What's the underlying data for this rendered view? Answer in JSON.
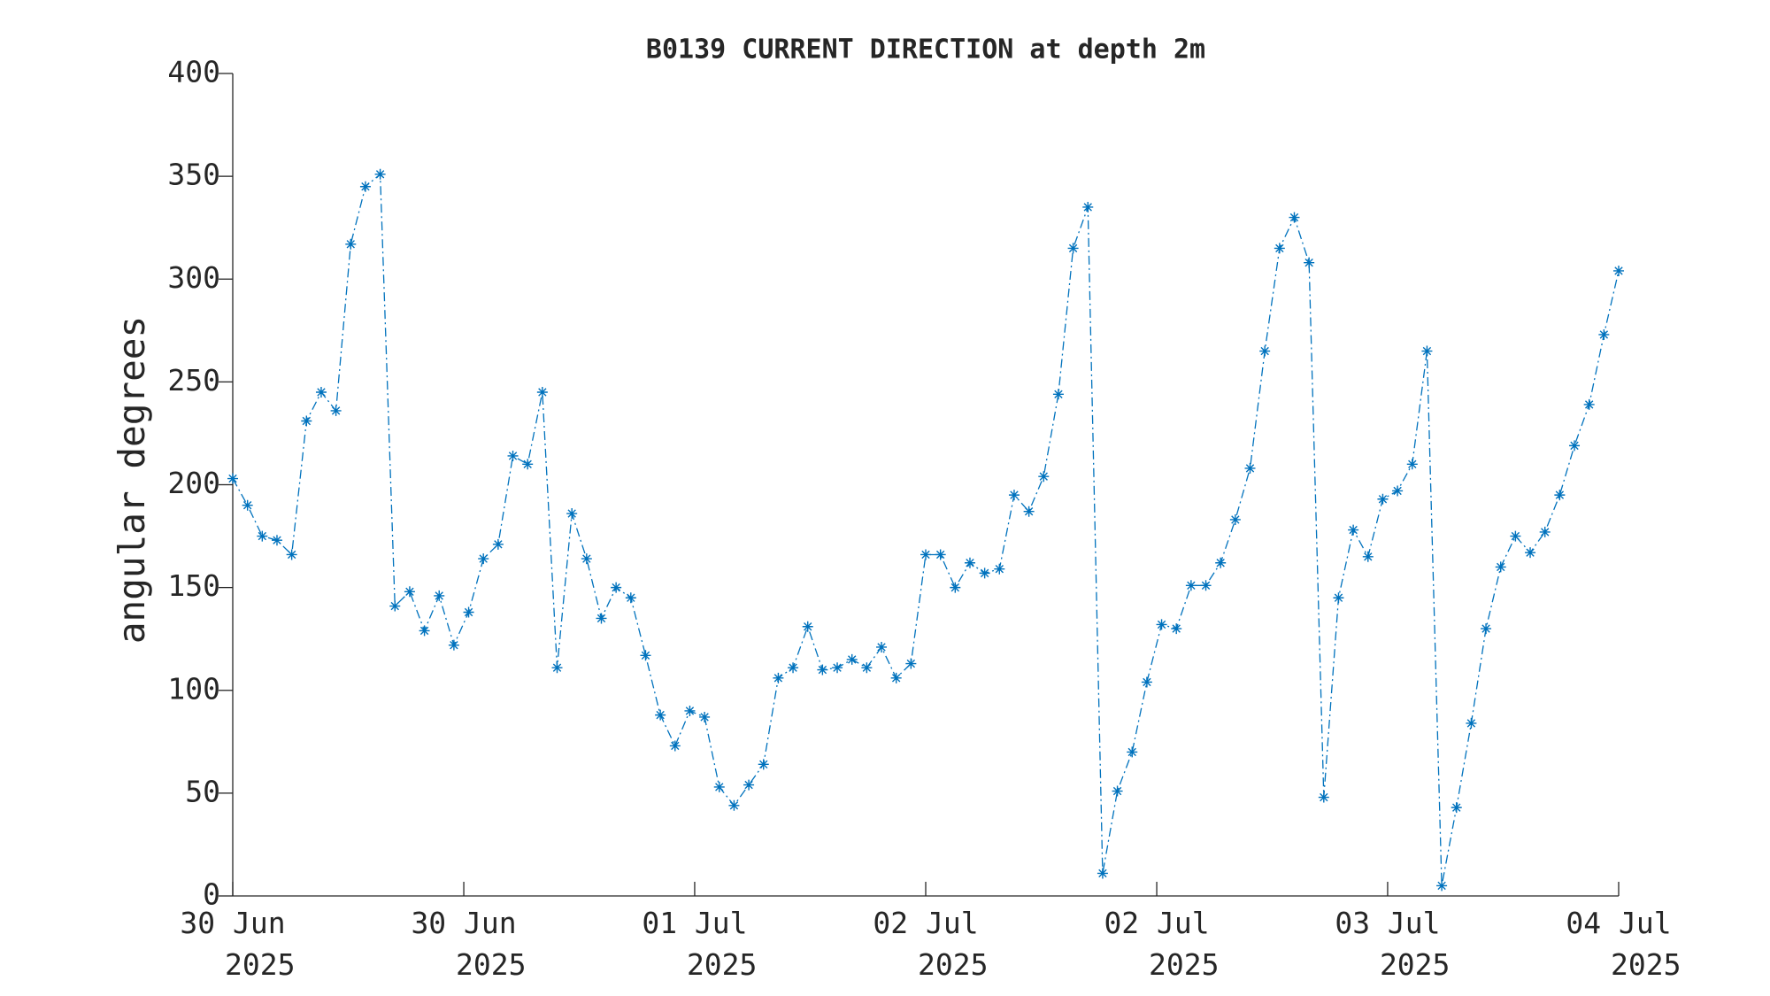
{
  "chart_data": {
    "type": "line",
    "title": "B0139 CURRENT DIRECTION at depth 2m",
    "ylabel": "angular degrees",
    "x": [
      0,
      1,
      2,
      3,
      4,
      5,
      6,
      7,
      8,
      9,
      10,
      11,
      12,
      13,
      14,
      15,
      16,
      17,
      18,
      19,
      20,
      21,
      22,
      23,
      24,
      25,
      26,
      27,
      28,
      29,
      30,
      31,
      32,
      33,
      34,
      35,
      36,
      37,
      38,
      39,
      40,
      41,
      42,
      43,
      44,
      45,
      46,
      47,
      48,
      49,
      50,
      51,
      52,
      53,
      54,
      55,
      56,
      57,
      58,
      59,
      60,
      61,
      62,
      63,
      64,
      65,
      66,
      67,
      68,
      69,
      70,
      71,
      72,
      73,
      74,
      75,
      76,
      77,
      78,
      79,
      80,
      81,
      82,
      83,
      84,
      85,
      86,
      87,
      88,
      89,
      90,
      91,
      92,
      93,
      94
    ],
    "series": [
      {
        "name": "current direction",
        "color": "#0072bd",
        "values": [
          203,
          190,
          175,
          173,
          166,
          231,
          245,
          236,
          317,
          345,
          351,
          141,
          148,
          129,
          146,
          122,
          138,
          164,
          171,
          214,
          210,
          245,
          111,
          186,
          164,
          135,
          150,
          145,
          117,
          88,
          73,
          90,
          87,
          53,
          44,
          54,
          64,
          106,
          111,
          131,
          110,
          111,
          115,
          111,
          121,
          106,
          113,
          166,
          166,
          150,
          162,
          157,
          159,
          195,
          187,
          204,
          244,
          315,
          335,
          11,
          51,
          70,
          104,
          132,
          130,
          151,
          151,
          162,
          183,
          208,
          265,
          315,
          330,
          308,
          48,
          145,
          178,
          165,
          193,
          197,
          210,
          265,
          5,
          43,
          84,
          130,
          160,
          175,
          167,
          177,
          195,
          219,
          239,
          273,
          304
        ]
      }
    ],
    "xlim": [
      0,
      94
    ],
    "xticks": [
      {
        "value": 0,
        "label": "30 Jun\n2025"
      },
      {
        "value": 15.67,
        "label": "30 Jun\n2025"
      },
      {
        "value": 31.33,
        "label": "01 Jul\n2025"
      },
      {
        "value": 47,
        "label": "02 Jul\n2025"
      },
      {
        "value": 62.67,
        "label": "02 Jul\n2025"
      },
      {
        "value": 78.33,
        "label": "03 Jul\n2025"
      },
      {
        "value": 94,
        "label": "04 Jul\n2025"
      }
    ],
    "ylim": [
      0,
      400
    ],
    "yticks": [
      0,
      50,
      100,
      150,
      200,
      250,
      300,
      350,
      400
    ]
  }
}
